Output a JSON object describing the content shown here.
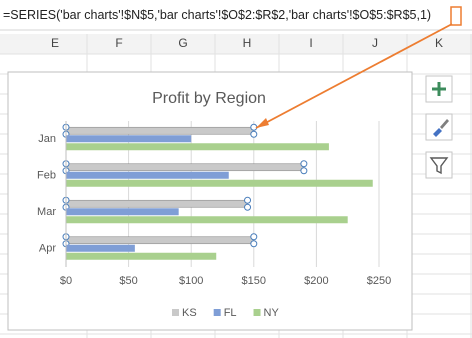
{
  "formula_bar": {
    "text": "=SERIES('bar charts'!$N$5,'bar charts'!$O$2:$R$2,'bar charts'!$O$5:$R$5,",
    "highlight": "1",
    "suffix": ")"
  },
  "columns": [
    "E",
    "F",
    "G",
    "H",
    "I",
    "J",
    "K"
  ],
  "chart_data": {
    "type": "bar",
    "orientation": "horizontal",
    "title": "Profit by Region",
    "categories": [
      "Jan",
      "Feb",
      "Mar",
      "Apr"
    ],
    "series": [
      {
        "name": "KS",
        "color": "#c9c9c9",
        "values": [
          150,
          190,
          145,
          150
        ]
      },
      {
        "name": "FL",
        "color": "#7f9ed6",
        "values": [
          100,
          130,
          90,
          55
        ]
      },
      {
        "name": "NY",
        "color": "#a9d08e",
        "values": [
          210,
          245,
          225,
          120
        ]
      }
    ],
    "xlim": [
      0,
      250
    ],
    "xticks": [
      {
        "value": 0,
        "label": "$0"
      },
      {
        "value": 50,
        "label": "$50"
      },
      {
        "value": 100,
        "label": "$100"
      },
      {
        "value": 150,
        "label": "$150"
      },
      {
        "value": 200,
        "label": "$200"
      },
      {
        "value": 250,
        "label": "$250"
      }
    ],
    "grid": true,
    "legend": "bottom"
  }
}
